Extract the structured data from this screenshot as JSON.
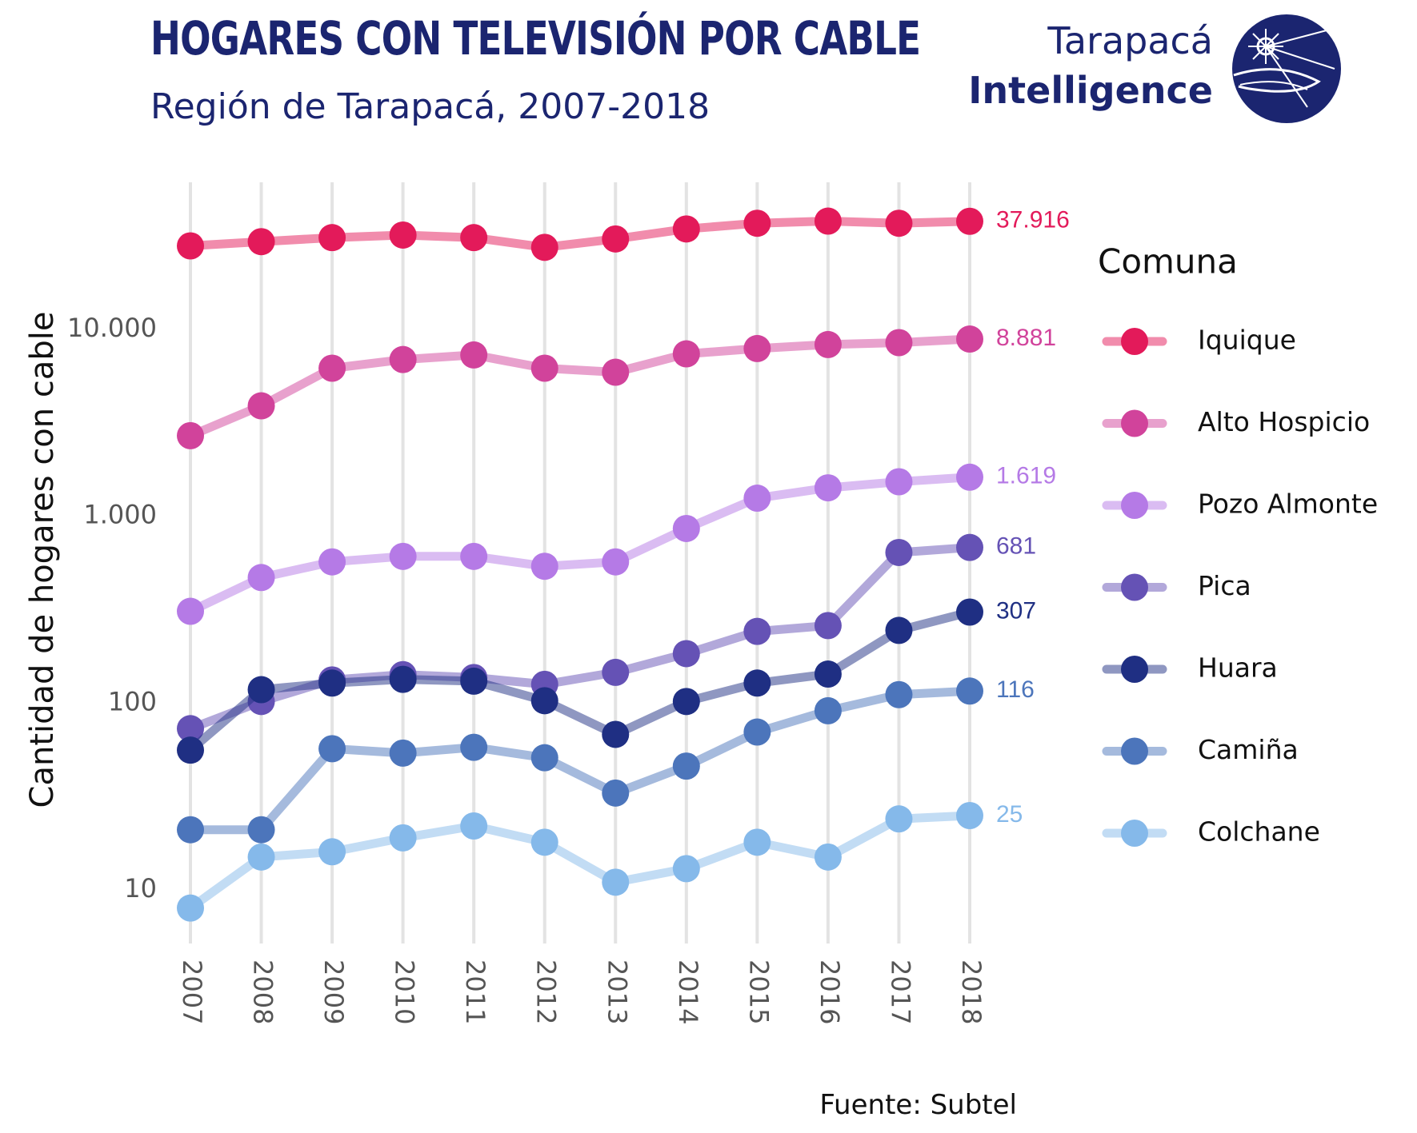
{
  "header": {
    "title": "HOGARES CON TELEVISIÓN POR CABLE",
    "subtitle": "Región de Tarapacá, 2007-2018"
  },
  "logo": {
    "line1": "Tarapacá",
    "line2": "Intelligence",
    "color": "#1b2570"
  },
  "source": "Fuente: Subtel",
  "chart_data": {
    "type": "line",
    "title": "HOGARES CON TELEVISIÓN POR CABLE",
    "subtitle": "Región de Tarapacá, 2007-2018",
    "xlabel": "",
    "ylabel": "Cantidad de hogares con cable",
    "yscale": "log10",
    "ylim": [
      5,
      50000
    ],
    "x": [
      "2007",
      "2008",
      "2009",
      "2010",
      "2011",
      "2012",
      "2013",
      "2014",
      "2015",
      "2016",
      "2017",
      "2018"
    ],
    "yticks": [
      10,
      100,
      1000,
      10000
    ],
    "ytick_labels": [
      "10",
      "100",
      "1.000",
      "10.000"
    ],
    "grid": "vertical",
    "legend": {
      "title": "Comuna",
      "position": "right"
    },
    "series": [
      {
        "name": "Iquique",
        "color": "#e31a5a",
        "values": [
          28000,
          29500,
          31000,
          32000,
          31000,
          27500,
          30500,
          34500,
          37000,
          38000,
          37000,
          37916
        ],
        "end_label": "37.916"
      },
      {
        "name": "Alto Hospicio",
        "color": "#d1439b",
        "values": [
          2700,
          3900,
          6200,
          6900,
          7300,
          6200,
          5900,
          7400,
          7900,
          8300,
          8500,
          8881
        ],
        "end_label": "8.881"
      },
      {
        "name": "Pozo Almonte",
        "color": "#b57ae6",
        "values": [
          310,
          470,
          570,
          610,
          610,
          540,
          570,
          860,
          1250,
          1420,
          1530,
          1619
        ],
        "end_label": "1.619"
      },
      {
        "name": "Pica",
        "color": "#6552b5",
        "values": [
          73,
          102,
          133,
          142,
          137,
          126,
          146,
          184,
          242,
          260,
          640,
          681
        ],
        "end_label": "681"
      },
      {
        "name": "Huara",
        "color": "#1f2f83",
        "values": [
          56,
          118,
          128,
          134,
          131,
          103,
          68,
          102,
          128,
          143,
          245,
          307
        ],
        "end_label": "307"
      },
      {
        "name": "Camiña",
        "color": "#4c75bb",
        "values": [
          21,
          21,
          57,
          54,
          58,
          51,
          33,
          46,
          70,
          91,
          111,
          116
        ],
        "end_label": "116"
      },
      {
        "name": "Colchane",
        "color": "#85b9ea",
        "values": [
          8,
          15,
          16,
          19,
          22,
          18,
          11,
          13,
          18,
          15,
          24,
          25
        ],
        "end_label": "25"
      }
    ]
  }
}
